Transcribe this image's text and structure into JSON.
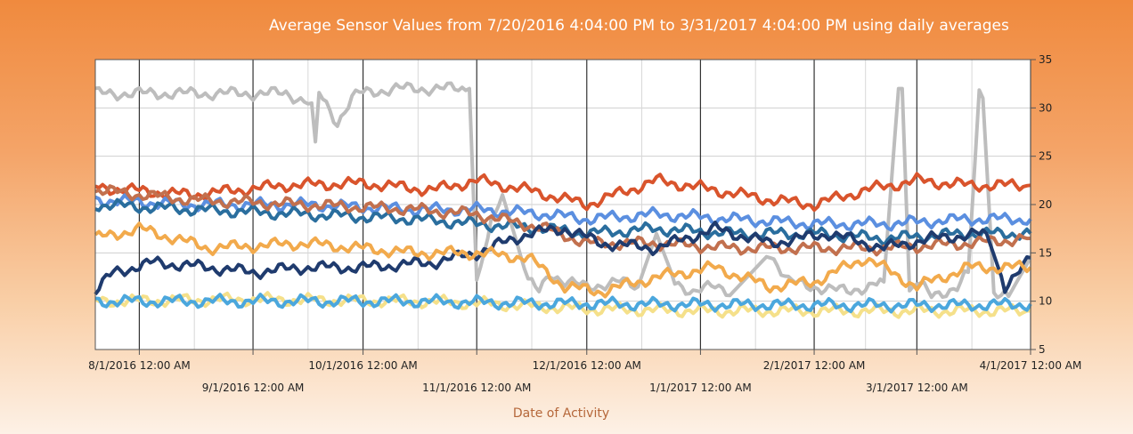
{
  "chart_data": {
    "type": "line",
    "title": "Average Sensor Values from 7/20/2016 4:04:00 PM to 3/31/2017 4:04:00 PM using daily averages",
    "xlabel": "Date of Activity",
    "ylabel": "",
    "ylim": [
      5,
      35
    ],
    "y_ticks": [
      "5",
      "10",
      "15",
      "20",
      "25",
      "30",
      "35"
    ],
    "y_axis_side": "right",
    "grid": true,
    "x_range": [
      "2016-07-20",
      "2017-04-01"
    ],
    "x_ticks": [
      {
        "date": "2016-08-01",
        "label": "8/1/2016 12:00 AM"
      },
      {
        "date": "2016-09-01",
        "label": "9/1/2016 12:00 AM"
      },
      {
        "date": "2016-10-01",
        "label": "10/1/2016 12:00 AM"
      },
      {
        "date": "2016-11-01",
        "label": "11/1/2016 12:00 AM"
      },
      {
        "date": "2016-12-01",
        "label": "12/1/2016 12:00 AM"
      },
      {
        "date": "2017-01-01",
        "label": "1/1/2017 12:00 AM"
      },
      {
        "date": "2017-02-01",
        "label": "2/1/2017 12:00 AM"
      },
      {
        "date": "2017-03-01",
        "label": "3/1/2017 12:00 AM"
      },
      {
        "date": "2017-04-01",
        "label": "4/1/2017 12:00 AM"
      }
    ],
    "series": [
      {
        "color": "#bdbdbd",
        "x": [
          "2016-07-20",
          "2016-08-10",
          "2016-09-10",
          "2016-09-17",
          "2016-09-18",
          "2016-09-19",
          "2016-09-24",
          "2016-09-28",
          "2016-09-30",
          "2016-10-10",
          "2016-10-30",
          "2016-11-01",
          "2016-11-02",
          "2016-11-05",
          "2016-11-08",
          "2016-11-12",
          "2016-11-15",
          "2016-11-18",
          "2016-11-21",
          "2016-11-25",
          "2016-12-01",
          "2016-12-10",
          "2016-12-15",
          "2016-12-20",
          "2016-12-25",
          "2016-12-30",
          "2017-01-05",
          "2017-01-10",
          "2017-01-20",
          "2017-01-25",
          "2017-02-01",
          "2017-02-10",
          "2017-02-20",
          "2017-02-24",
          "2017-02-25",
          "2017-02-27",
          "2017-03-01",
          "2017-03-05",
          "2017-03-12",
          "2017-03-15",
          "2017-03-18",
          "2017-03-19",
          "2017-03-22",
          "2017-03-26",
          "2017-04-01"
        ],
        "values": [
          31.5,
          31.5,
          31.5,
          30.5,
          26.5,
          31.5,
          28.5,
          31.0,
          31.5,
          32.0,
          32.0,
          12.0,
          13.5,
          18.0,
          21.0,
          16.0,
          12.0,
          11.0,
          13.0,
          12.0,
          11.5,
          12.0,
          11.5,
          17.0,
          12.0,
          11.0,
          11.5,
          11.0,
          15.0,
          12.0,
          11.5,
          11.0,
          12.0,
          32.0,
          32.0,
          11.0,
          12.0,
          10.5,
          11.5,
          13.0,
          31.5,
          31.0,
          11.0,
          10.5,
          14.5
        ]
      },
      {
        "color": "#d9542c",
        "x": [
          "2016-07-20",
          "2016-08-15",
          "2016-09-10",
          "2016-10-01",
          "2016-10-20",
          "2016-11-01",
          "2016-11-15",
          "2016-12-01",
          "2016-12-20",
          "2017-01-05",
          "2017-01-20",
          "2017-02-01",
          "2017-02-15",
          "2017-03-01",
          "2017-03-15",
          "2017-04-01"
        ],
        "values": [
          21.8,
          21.0,
          22.0,
          22.2,
          21.5,
          22.5,
          21.5,
          20.0,
          22.5,
          21.5,
          20.5,
          20.0,
          21.5,
          22.5,
          22.0,
          22.0
        ]
      },
      {
        "color": "#5b8fe0",
        "x": [
          "2016-07-20",
          "2016-08-15",
          "2016-09-15",
          "2016-10-15",
          "2016-11-01",
          "2016-11-20",
          "2016-12-01",
          "2016-12-20",
          "2017-01-10",
          "2017-02-01",
          "2017-02-20",
          "2017-03-15",
          "2017-04-01"
        ],
        "values": [
          20.5,
          20.0,
          20.0,
          19.5,
          19.5,
          19.0,
          18.5,
          19.0,
          18.5,
          18.0,
          18.0,
          18.5,
          18.5
        ]
      },
      {
        "color": "#2a6e9e",
        "x": [
          "2016-07-20",
          "2016-08-15",
          "2016-09-15",
          "2016-10-15",
          "2016-11-01",
          "2016-11-20",
          "2016-12-01",
          "2016-12-20",
          "2017-01-10",
          "2017-02-01",
          "2017-02-20",
          "2017-03-15",
          "2017-04-01"
        ],
        "values": [
          20.0,
          19.5,
          19.0,
          18.5,
          18.0,
          17.5,
          17.0,
          17.5,
          17.0,
          17.0,
          16.5,
          17.0,
          17.0
        ]
      },
      {
        "color": "#c2704e",
        "x": [
          "2016-07-20",
          "2016-08-15",
          "2016-09-15",
          "2016-10-15",
          "2016-11-01",
          "2016-11-20",
          "2016-12-01",
          "2016-12-20",
          "2017-01-10",
          "2017-02-01",
          "2017-02-20",
          "2017-03-15",
          "2017-04-01"
        ],
        "values": [
          21.5,
          20.5,
          20.0,
          19.5,
          19.0,
          17.5,
          16.0,
          16.0,
          15.5,
          15.5,
          15.5,
          16.0,
          16.5
        ]
      },
      {
        "color": "#1f3b6e",
        "x": [
          "2016-07-20",
          "2016-07-25",
          "2016-08-05",
          "2016-08-20",
          "2016-09-01",
          "2016-09-15",
          "2016-10-01",
          "2016-10-20",
          "2016-11-01",
          "2016-11-15",
          "2016-11-25",
          "2016-12-05",
          "2016-12-20",
          "2017-01-05",
          "2017-01-20",
          "2017-02-05",
          "2017-02-20",
          "2017-03-05",
          "2017-03-20",
          "2017-03-25",
          "2017-03-28",
          "2017-04-01"
        ],
        "values": [
          11.0,
          13.0,
          14.0,
          13.5,
          13.0,
          13.5,
          13.5,
          14.0,
          15.0,
          17.0,
          17.5,
          16.0,
          15.5,
          17.5,
          16.0,
          17.0,
          15.5,
          16.5,
          17.0,
          11.5,
          12.5,
          14.5
        ]
      },
      {
        "color": "#f2aa4c",
        "x": [
          "2016-07-20",
          "2016-08-01",
          "2016-08-20",
          "2016-09-15",
          "2016-10-15",
          "2016-11-01",
          "2016-11-15",
          "2016-11-25",
          "2016-12-05",
          "2016-12-20",
          "2017-01-05",
          "2017-01-20",
          "2017-02-01",
          "2017-02-15",
          "2017-03-01",
          "2017-03-15",
          "2017-04-01"
        ],
        "values": [
          16.5,
          17.5,
          15.5,
          16.0,
          15.0,
          15.0,
          14.5,
          11.5,
          11.0,
          12.5,
          13.5,
          11.5,
          12.0,
          14.5,
          11.5,
          13.5,
          13.5
        ]
      },
      {
        "color": "#f5e08a",
        "x": [
          "2016-07-20",
          "2016-09-01",
          "2016-10-15",
          "2016-11-01",
          "2016-11-15",
          "2016-12-01",
          "2017-01-01",
          "2017-02-01",
          "2017-03-01",
          "2017-04-01"
        ],
        "values": [
          10.0,
          10.2,
          10.0,
          9.8,
          9.5,
          9.2,
          9.0,
          9.0,
          9.0,
          9.0
        ]
      },
      {
        "color": "#4ba7dd",
        "x": [
          "2016-07-20",
          "2016-09-01",
          "2016-10-15",
          "2016-11-15",
          "2016-12-15",
          "2017-02-01",
          "2017-03-15",
          "2017-04-01"
        ],
        "values": [
          10.0,
          10.0,
          10.0,
          9.8,
          9.7,
          9.6,
          9.6,
          9.7
        ]
      }
    ]
  }
}
